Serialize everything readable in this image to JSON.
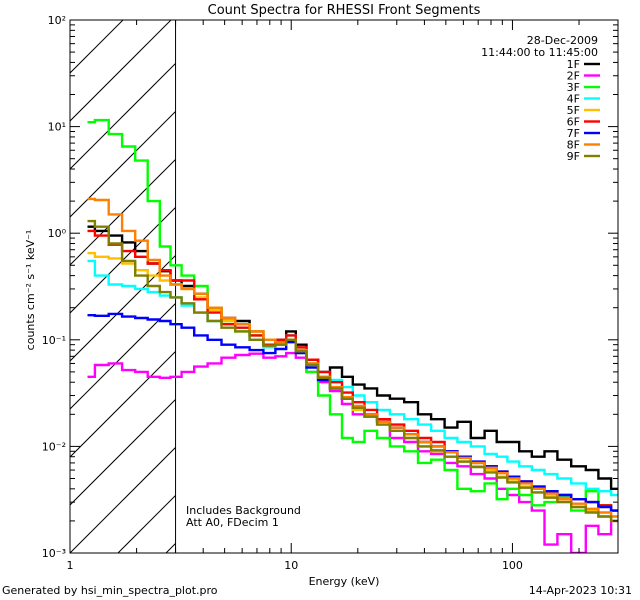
{
  "chart_data": {
    "type": "line",
    "title": "Count Spectra for RHESSI Front Segments",
    "xlabel": "Energy (keV)",
    "ylabel": "counts cm⁻² s⁻¹ keV⁻¹",
    "xscale": "log",
    "yscale": "log",
    "xlim": [
      1,
      300
    ],
    "ylim": [
      0.001,
      100
    ],
    "x_ticks": [
      {
        "value": 1,
        "label": "1"
      },
      {
        "value": 10,
        "label": "10"
      },
      {
        "value": 100,
        "label": "100"
      }
    ],
    "y_ticks": [
      {
        "value": 0.001,
        "label": "10⁻³"
      },
      {
        "value": 0.01,
        "label": "10⁻²"
      },
      {
        "value": 0.1,
        "label": "10⁻¹"
      },
      {
        "value": 1,
        "label": "10⁰"
      },
      {
        "value": 10,
        "label": "10¹"
      },
      {
        "value": 100,
        "label": "10²"
      }
    ],
    "hatched_region": {
      "x_min": 1,
      "x_max": 3
    },
    "date": "28-Dec-2009",
    "time_range": "11:44:00 to 11:45:00",
    "legend_position": "top-right",
    "annotations": [
      "Includes Background",
      "Att A0, FDecim 1"
    ],
    "energy_bins_keV": [
      1.2,
      1.4,
      1.6,
      1.85,
      2.1,
      2.4,
      2.7,
      3.0,
      3.4,
      3.9,
      4.5,
      5.2,
      6.0,
      7.0,
      8.0,
      9.0,
      10.0,
      11.0,
      12.5,
      14.0,
      16.0,
      18.0,
      20.0,
      23.0,
      26.0,
      30.0,
      35.0,
      40.0,
      46.0,
      53.0,
      60.0,
      70.0,
      80.0,
      90.0,
      100.0,
      115.0,
      130.0,
      150.0,
      170.0,
      200.0,
      230.0,
      260.0,
      300.0
    ],
    "series": [
      {
        "name": "1F",
        "color": "#000000",
        "values": [
          1.15,
          1.05,
          0.95,
          0.82,
          0.68,
          0.52,
          0.44,
          0.36,
          0.32,
          0.27,
          0.2,
          0.16,
          0.15,
          0.12,
          0.09,
          0.1,
          0.12,
          0.09,
          0.065,
          0.05,
          0.055,
          0.045,
          0.038,
          0.035,
          0.03,
          0.028,
          0.026,
          0.02,
          0.018,
          0.015,
          0.017,
          0.012,
          0.014,
          0.011,
          0.011,
          0.009,
          0.008,
          0.009,
          0.0075,
          0.0065,
          0.006,
          0.005,
          0.004
        ]
      },
      {
        "name": "2F",
        "color": "#ff00ff",
        "values": [
          0.045,
          0.058,
          0.06,
          0.052,
          0.05,
          0.045,
          0.044,
          0.045,
          0.05,
          0.056,
          0.06,
          0.068,
          0.072,
          0.074,
          0.068,
          0.07,
          0.075,
          0.068,
          0.05,
          0.04,
          0.033,
          0.025,
          0.02,
          0.019,
          0.017,
          0.012,
          0.011,
          0.009,
          0.0085,
          0.007,
          0.0065,
          0.0055,
          0.005,
          0.004,
          0.0035,
          0.003,
          0.0025,
          0.0012,
          0.0015,
          0.001,
          0.0018,
          0.0015,
          0.002
        ]
      },
      {
        "name": "3F",
        "color": "#00ff00",
        "values": [
          11.0,
          11.5,
          8.5,
          6.5,
          4.8,
          2.0,
          0.75,
          0.5,
          0.4,
          0.32,
          0.2,
          0.15,
          0.12,
          0.11,
          0.1,
          0.09,
          0.1,
          0.075,
          0.05,
          0.03,
          0.02,
          0.012,
          0.011,
          0.014,
          0.012,
          0.01,
          0.009,
          0.007,
          0.0075,
          0.006,
          0.004,
          0.0038,
          0.0045,
          0.0032,
          0.004,
          0.0035,
          0.0028,
          0.003,
          0.0033,
          0.0025,
          0.0038,
          0.0028,
          0.0025
        ]
      },
      {
        "name": "4F",
        "color": "#00ffff",
        "values": [
          0.55,
          0.4,
          0.33,
          0.32,
          0.3,
          0.28,
          0.26,
          0.25,
          0.21,
          0.18,
          0.15,
          0.14,
          0.13,
          0.1,
          0.085,
          0.09,
          0.11,
          0.08,
          0.06,
          0.05,
          0.042,
          0.036,
          0.03,
          0.026,
          0.022,
          0.02,
          0.018,
          0.016,
          0.014,
          0.012,
          0.011,
          0.01,
          0.0085,
          0.008,
          0.0072,
          0.0065,
          0.006,
          0.0055,
          0.005,
          0.0045,
          0.004,
          0.0038,
          0.0035
        ]
      },
      {
        "name": "5F",
        "color": "#ffbf00",
        "values": [
          0.65,
          0.6,
          0.58,
          0.52,
          0.45,
          0.4,
          0.36,
          0.33,
          0.3,
          0.25,
          0.19,
          0.15,
          0.14,
          0.12,
          0.1,
          0.095,
          0.1,
          0.08,
          0.06,
          0.045,
          0.035,
          0.028,
          0.022,
          0.019,
          0.016,
          0.014,
          0.012,
          0.01,
          0.009,
          0.008,
          0.0072,
          0.0065,
          0.006,
          0.0052,
          0.0047,
          0.0042,
          0.0037,
          0.0034,
          0.003,
          0.0027,
          0.0025,
          0.0022,
          0.002
        ]
      },
      {
        "name": "6F",
        "color": "#ff0000",
        "values": [
          1.05,
          0.95,
          0.78,
          0.68,
          0.6,
          0.52,
          0.45,
          0.36,
          0.36,
          0.24,
          0.18,
          0.14,
          0.13,
          0.11,
          0.09,
          0.1,
          0.11,
          0.085,
          0.065,
          0.05,
          0.04,
          0.032,
          0.026,
          0.022,
          0.018,
          0.016,
          0.014,
          0.012,
          0.011,
          0.009,
          0.008,
          0.007,
          0.0065,
          0.0058,
          0.0052,
          0.0047,
          0.0042,
          0.0038,
          0.0035,
          0.0032,
          0.003,
          0.0028,
          0.0025
        ]
      },
      {
        "name": "7F",
        "color": "#0000ff",
        "values": [
          0.17,
          0.168,
          0.175,
          0.165,
          0.16,
          0.155,
          0.15,
          0.14,
          0.13,
          0.11,
          0.1,
          0.09,
          0.085,
          0.08,
          0.075,
          0.082,
          0.095,
          0.075,
          0.055,
          0.042,
          0.035,
          0.028,
          0.023,
          0.02,
          0.017,
          0.015,
          0.013,
          0.011,
          0.01,
          0.009,
          0.008,
          0.0072,
          0.0065,
          0.0058,
          0.0052,
          0.0047,
          0.0042,
          0.0038,
          0.0035,
          0.0032,
          0.003,
          0.0027,
          0.0025
        ]
      },
      {
        "name": "8F",
        "color": "#ff7f00",
        "values": [
          2.1,
          2.05,
          1.5,
          1.05,
          0.85,
          0.56,
          0.4,
          0.33,
          0.3,
          0.27,
          0.2,
          0.16,
          0.14,
          0.12,
          0.1,
          0.095,
          0.1,
          0.08,
          0.06,
          0.045,
          0.036,
          0.029,
          0.024,
          0.02,
          0.017,
          0.015,
          0.013,
          0.011,
          0.01,
          0.0088,
          0.0078,
          0.007,
          0.0063,
          0.0056,
          0.005,
          0.0045,
          0.004,
          0.0036,
          0.0032,
          0.0029,
          0.0026,
          0.0024,
          0.0022
        ]
      },
      {
        "name": "9F",
        "color": "#7f7f00",
        "values": [
          1.3,
          1.15,
          0.8,
          0.55,
          0.4,
          0.32,
          0.28,
          0.25,
          0.22,
          0.18,
          0.15,
          0.13,
          0.12,
          0.1,
          0.088,
          0.09,
          0.1,
          0.078,
          0.058,
          0.044,
          0.035,
          0.028,
          0.023,
          0.019,
          0.016,
          0.014,
          0.012,
          0.01,
          0.0092,
          0.008,
          0.0072,
          0.0064,
          0.0057,
          0.0051,
          0.0046,
          0.0041,
          0.0037,
          0.0033,
          0.003,
          0.0027,
          0.0024,
          0.0022,
          0.002
        ]
      }
    ]
  },
  "footer": {
    "generated_by": "Generated by hsi_min_spectra_plot.pro",
    "timestamp": "14-Apr-2023 10:31"
  }
}
